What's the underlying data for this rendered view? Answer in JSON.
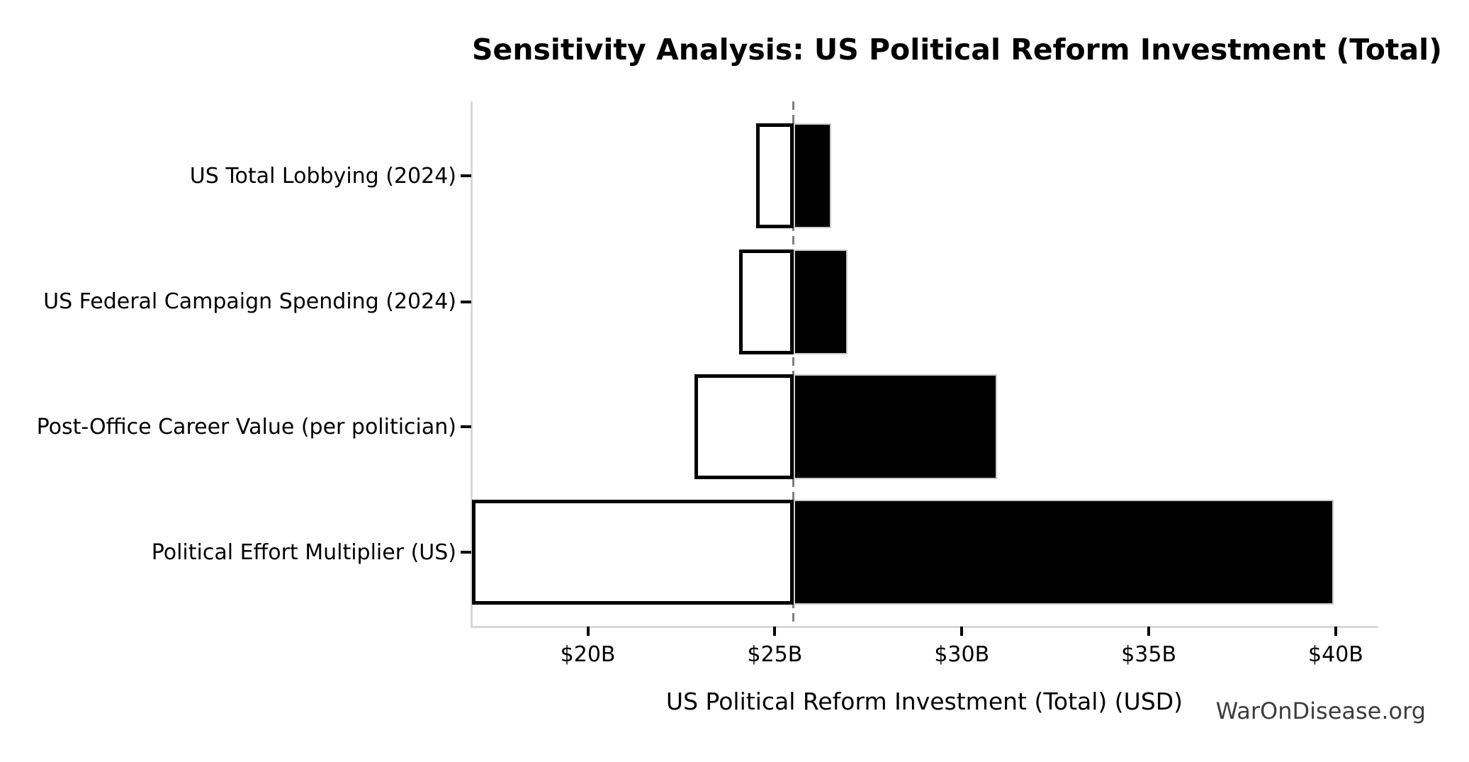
{
  "chart_data": {
    "type": "bar",
    "variant": "tornado-sensitivity",
    "orientation": "horizontal",
    "title": "Sensitivity Analysis: US Political Reform Investment (Total)",
    "xlabel": "US Political Reform Investment (Total) (USD)",
    "unit": "USD billions",
    "baseline": 25.5,
    "xlim": [
      16.9,
      41.1
    ],
    "x_ticks": [
      {
        "value": 20,
        "label": "$20B"
      },
      {
        "value": 25,
        "label": "$25B"
      },
      {
        "value": 30,
        "label": "$30B"
      },
      {
        "value": 35,
        "label": "$35B"
      },
      {
        "value": 40,
        "label": "$40B"
      }
    ],
    "categories": [
      "US Total Lobbying (2024)",
      "US Federal Campaign Spending (2024)",
      "Post-Office Career Value (per politician)",
      "Political Effort Multiplier (US)"
    ],
    "series": [
      {
        "name": "downside",
        "fill": "#ffffff",
        "values": [
          24.5,
          24.05,
          22.85,
          16.9
        ]
      },
      {
        "name": "upside",
        "fill": "#000000",
        "values": [
          26.5,
          26.95,
          30.95,
          39.95
        ]
      }
    ],
    "grid": false,
    "legend": false,
    "watermark": "WarOnDisease.org",
    "colors": {
      "bar_downside_fill": "#ffffff",
      "bar_downside_border": "#000000",
      "bar_upside_fill": "#000000",
      "bar_upside_border": "#c9c9c9",
      "baseline_line": "#7f7f7f",
      "axis_spine": "#d8d8d8",
      "tick_mark": "#000000",
      "text": "#000000",
      "watermark": "#3d3d3d"
    }
  }
}
